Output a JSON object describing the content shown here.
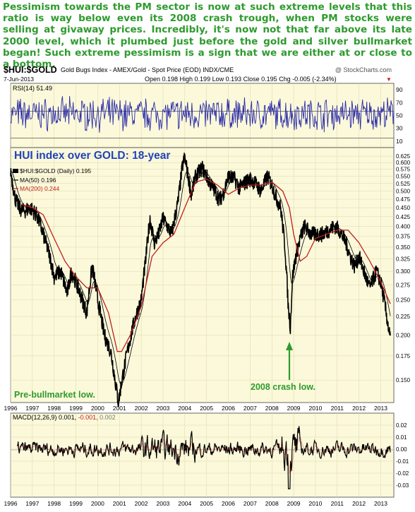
{
  "caption": "Pessimism towards the PM sector is now at such extreme levels that this ratio is way below even its 2008 crash trough, when PM stocks were selling at givaway prices. Incredibly, it's now not that far above its late 2000 level, which it plumbed just before the gold and silver bullmarket began! Such extreme pessimism is a sign that we are either at or close to a bottom.",
  "colors": {
    "caption": "#2e9b2e",
    "panel_bg": "#fbf9da",
    "grid": "#ddd6a8",
    "rsi": "#2b2ba8",
    "ratio_bars": "#000000",
    "ma50": "#000000",
    "ma200": "#c02020",
    "blue_title": "#2244bb",
    "annotation": "#2e9b2e"
  },
  "header": {
    "symbol": "$HUI:$GOLD",
    "description": "Gold Bugs Index - AMEX/Gold - Spot Price (EOD) INDX/CME",
    "watermark": "@ StockCharts.com",
    "date": "7-Jun-2013",
    "ohlc": "Open 0.198  High 0.199  Low 0.193  Close 0.195  Chg -0.005 (-2.34%)",
    "down_arrow": "▼"
  },
  "rsi_label": "RSI(14) 51.49",
  "chart_title": "HUI index over GOLD: 18-year",
  "legend": {
    "main": "$HUI:$GOLD (Daily) 0.195",
    "ma50": "MA(50) 0.196",
    "ma200": "MA(200) 0.244"
  },
  "macd_label": {
    "prefix": "MACD(12,26,9)",
    "macd": "0.001,",
    "signal": "-0.001,",
    "hist": "0.002"
  },
  "annotations": {
    "pre_bull": "Pre-bullmarket low.",
    "crash": "2008 crash low."
  },
  "chart_data": [
    {
      "type": "line",
      "name": "RSI(14)",
      "yticks": [
        10,
        30,
        50,
        70,
        90
      ],
      "guide_lines": [
        30,
        70
      ],
      "last": 51.49,
      "ylim": [
        0,
        100
      ]
    },
    {
      "type": "line",
      "name": "$HUI:$GOLD",
      "scale": "log",
      "title": "HUI index over GOLD: 18-year",
      "yticks": [
        0.15,
        0.175,
        0.2,
        0.225,
        0.25,
        0.275,
        0.3,
        0.325,
        0.35,
        0.375,
        0.4,
        0.425,
        0.45,
        0.475,
        0.5,
        0.525,
        0.55,
        0.575,
        0.6,
        0.625
      ],
      "ytick_labels": [
        "0.150",
        "0.175",
        "0.200",
        "0.225",
        "0.250",
        "0.275",
        "0.300",
        "0.325",
        "0.350",
        "0.375",
        "0.400",
        "0.425",
        "0.450",
        "0.475",
        "0.500",
        "0.525",
        "0.550",
        "0.575",
        "0.600",
        "0.625"
      ],
      "ylim": [
        0.13,
        0.66
      ],
      "xticks": [
        "1996",
        "1997",
        "1998",
        "1999",
        "2000",
        "2001",
        "2002",
        "2003",
        "2004",
        "2005",
        "2006",
        "2007",
        "2008",
        "2009",
        "2010",
        "2011",
        "2012",
        "2013"
      ],
      "xlim": [
        1996.0,
        2013.6
      ],
      "ratio_series": {
        "x": [
          1996.0,
          1996.2,
          1996.4,
          1996.6,
          1996.9,
          1997.2,
          1997.5,
          1997.8,
          1998.0,
          1998.3,
          1998.6,
          1998.8,
          1999.0,
          1999.3,
          1999.5,
          1999.75,
          2000.0,
          2000.3,
          2000.6,
          2000.8,
          2000.95,
          2001.2,
          2001.45,
          2001.7,
          2002.0,
          2002.2,
          2002.4,
          2002.6,
          2002.8,
          2003.0,
          2003.2,
          2003.4,
          2003.7,
          2003.9,
          2004.0,
          2004.15,
          2004.3,
          2004.5,
          2004.8,
          2005.0,
          2005.2,
          2005.4,
          2005.6,
          2005.8,
          2006.0,
          2006.3,
          2006.5,
          2006.8,
          2007.0,
          2007.2,
          2007.5,
          2007.8,
          2008.0,
          2008.2,
          2008.4,
          2008.6,
          2008.75,
          2008.85,
          2008.95,
          2009.1,
          2009.3,
          2009.5,
          2009.8,
          2010.0,
          2010.3,
          2010.6,
          2010.9,
          2011.1,
          2011.4,
          2011.6,
          2011.8,
          2012.0,
          2012.3,
          2012.5,
          2012.8,
          2013.0,
          2013.2,
          2013.35,
          2013.44
        ],
        "y": [
          0.57,
          0.48,
          0.45,
          0.44,
          0.45,
          0.43,
          0.38,
          0.33,
          0.29,
          0.3,
          0.26,
          0.3,
          0.28,
          0.25,
          0.23,
          0.31,
          0.25,
          0.2,
          0.18,
          0.15,
          0.13,
          0.16,
          0.19,
          0.22,
          0.25,
          0.32,
          0.42,
          0.36,
          0.38,
          0.42,
          0.4,
          0.38,
          0.47,
          0.59,
          0.62,
          0.55,
          0.49,
          0.55,
          0.58,
          0.55,
          0.52,
          0.5,
          0.47,
          0.5,
          0.55,
          0.54,
          0.51,
          0.53,
          0.54,
          0.53,
          0.5,
          0.55,
          0.52,
          0.48,
          0.45,
          0.35,
          0.24,
          0.21,
          0.29,
          0.33,
          0.37,
          0.4,
          0.38,
          0.38,
          0.38,
          0.39,
          0.4,
          0.39,
          0.36,
          0.33,
          0.31,
          0.33,
          0.29,
          0.27,
          0.3,
          0.28,
          0.24,
          0.21,
          0.195
        ]
      },
      "ma200_series": {
        "x": [
          1996.5,
          1997.0,
          1997.5,
          1998.0,
          1998.5,
          1999.0,
          1999.5,
          2000.0,
          2000.5,
          2000.9,
          2001.1,
          2001.5,
          2002.0,
          2002.5,
          2003.0,
          2003.5,
          2004.0,
          2004.5,
          2005.0,
          2005.5,
          2006.0,
          2006.5,
          2007.0,
          2007.5,
          2008.0,
          2008.5,
          2008.8,
          2009.0,
          2009.3,
          2009.6,
          2010.0,
          2010.5,
          2011.0,
          2011.5,
          2012.0,
          2012.5,
          2013.0,
          2013.44
        ],
        "y": [
          0.46,
          0.45,
          0.43,
          0.37,
          0.32,
          0.29,
          0.27,
          0.27,
          0.23,
          0.18,
          0.18,
          0.2,
          0.24,
          0.33,
          0.36,
          0.38,
          0.45,
          0.53,
          0.54,
          0.52,
          0.49,
          0.51,
          0.52,
          0.52,
          0.53,
          0.5,
          0.45,
          0.38,
          0.32,
          0.33,
          0.37,
          0.38,
          0.39,
          0.39,
          0.36,
          0.32,
          0.28,
          0.244
        ]
      }
    },
    {
      "type": "line",
      "name": "MACD(12,26,9)",
      "yticks": [
        0.02,
        0.01,
        0.0,
        -0.01,
        -0.02,
        -0.03
      ],
      "ytick_labels": [
        "0.02",
        "0.01",
        "0.00",
        "-0.01",
        "-0.02",
        "-0.03"
      ],
      "ylim": [
        -0.04,
        0.03
      ]
    }
  ]
}
